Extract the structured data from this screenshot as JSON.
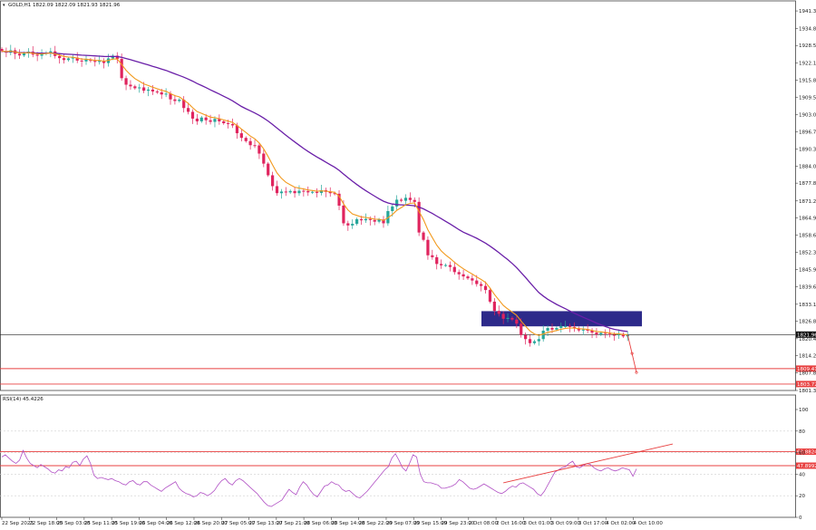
{
  "chart_data": [
    {
      "type": "candlestick",
      "symbol_header": "GOLD,H1 1822.09 1822.09 1821.93 1821.96",
      "last_price": "1821.96",
      "ylim": [
        1801.35,
        1945.0
      ],
      "y_ticks": [
        "1941.30",
        "1934.80",
        "1928.55",
        "1922.10",
        "1915.80",
        "1909.50",
        "1903.00",
        "1896.75",
        "1890.30",
        "1884.05",
        "1877.80",
        "1871.25",
        "1864.95",
        "1858.65",
        "1852.30",
        "1845.90",
        "1839.65",
        "1833.15",
        "1826.85",
        "1820.45",
        "1814.20",
        "1807.80",
        "1801.35"
      ],
      "levels": [
        {
          "price": 1809.41,
          "label": "1809.41",
          "color": "#e84040"
        },
        {
          "price": 1803.72,
          "label": "1803.72",
          "color": "#e84040"
        }
      ],
      "zone": {
        "from": 1825.0,
        "to": 1830.6,
        "color": "#2d2a8a"
      },
      "bull_color": "#26a69a",
      "bear_color": "#e0245e",
      "fast_ma_color": "#f29a1e",
      "slow_ma_color": "#6a1fa8",
      "closes": [
        1926.5,
        1925.9,
        1926.8,
        1925.5,
        1924.9,
        1925.7,
        1926.3,
        1925.2,
        1924.8,
        1925.5,
        1925.9,
        1926.4,
        1924.7,
        1923.9,
        1923.2,
        1923.8,
        1924.1,
        1923.0,
        1922.7,
        1923.4,
        1922.9,
        1922.5,
        1922.9,
        1922.1,
        1923.8,
        1924.8,
        1923.6,
        1916.5,
        1914.1,
        1913.5,
        1912.8,
        1913.1,
        1911.9,
        1912.3,
        1911.6,
        1911.3,
        1910.5,
        1910.8,
        1908.7,
        1908.1,
        1908.6,
        1905.5,
        1904.1,
        1901.6,
        1900.6,
        1902.0,
        1901.0,
        1900.4,
        1901.5,
        1900.6,
        1899.9,
        1899.6,
        1899.1,
        1896.2,
        1894.5,
        1893.3,
        1891.8,
        1891.7,
        1888.7,
        1885.0,
        1880.7,
        1876.7,
        1874.1,
        1874.7,
        1874.4,
        1874.9,
        1874.1,
        1875.0,
        1874.9,
        1874.4,
        1874.6,
        1874.2,
        1875.2,
        1874.6,
        1874.1,
        1873.9,
        1869.5,
        1863.0,
        1862.2,
        1862.8,
        1864.5,
        1864.1,
        1864.6,
        1864.2,
        1863.6,
        1864.4,
        1863.0,
        1867.5,
        1869.2,
        1871.7,
        1871.3,
        1872.4,
        1871.6,
        1870.9,
        1859.6,
        1856.9,
        1851.2,
        1850.5,
        1848.0,
        1847.5,
        1847.6,
        1846.9,
        1845.0,
        1844.2,
        1843.4,
        1842.7,
        1841.9,
        1840.6,
        1839.9,
        1838.4,
        1834.1,
        1830.7,
        1829.6,
        1827.8,
        1828.1,
        1827.5,
        1826.0,
        1821.8,
        1820.3,
        1818.8,
        1819.5,
        1820.3,
        1823.4,
        1824.4,
        1823.8,
        1824.4,
        1825.1,
        1825.1,
        1824.8,
        1824.3,
        1823.5,
        1823.8,
        1823.4,
        1822.7,
        1822.0,
        1822.6,
        1822.3,
        1821.9,
        1821.7,
        1822.2,
        1821.3,
        1821.96,
        1815.0,
        1808.0
      ],
      "x_labels": [
        "22 Sep 2023",
        "22 Sep 18:00",
        "25 Sep 03:00",
        "25 Sep 11:00",
        "25 Sep 19:00",
        "26 Sep 04:00",
        "26 Sep 12:00",
        "26 Sep 20:00",
        "27 Sep 05:00",
        "27 Sep 13:00",
        "27 Sep 21:00",
        "28 Sep 06:00",
        "28 Sep 14:00",
        "28 Sep 22:00",
        "29 Sep 07:00",
        "29 Sep 15:00",
        "29 Sep 23:00",
        "2 Oct 08:00",
        "2 Oct 16:00",
        "3 Oct 01:00",
        "3 Oct 09:00",
        "3 Oct 17:00",
        "4 Oct 02:00",
        "4 Oct 10:00"
      ]
    },
    {
      "type": "line",
      "indicator_header": "RSI(14) 45.4226",
      "ylim": [
        0,
        100
      ],
      "y_ticks": [
        "100",
        "80",
        "60",
        "40",
        "20",
        "0"
      ],
      "levels": [
        {
          "value": 60.8824,
          "label": "60.8824",
          "color": "#e84040"
        },
        {
          "value": 47.8992,
          "label": "47.8992",
          "color": "#e84040"
        }
      ],
      "line_color": "#b04fc4",
      "trendline_color": "#e84040",
      "trendline": {
        "from": [
          113,
          32
        ],
        "to": [
          164,
          68
        ]
      },
      "rsi": [
        56,
        58,
        55,
        52,
        50,
        53,
        62,
        55,
        50,
        48,
        46,
        49,
        47,
        45,
        42,
        41,
        44,
        43,
        47,
        46,
        51,
        52,
        48,
        54,
        57,
        50,
        39,
        36,
        37,
        36,
        35,
        36,
        34,
        33,
        31,
        30,
        33,
        34,
        31,
        30,
        33,
        33,
        30,
        28,
        26,
        24,
        27,
        29,
        31,
        33,
        27,
        24,
        22,
        21,
        19,
        20,
        23,
        22,
        20,
        22,
        25,
        30,
        34,
        36,
        32,
        30,
        34,
        36,
        34,
        31,
        28,
        25,
        22,
        18,
        14,
        11,
        10,
        12,
        14,
        16,
        21,
        26,
        23,
        21,
        28,
        33,
        30,
        25,
        21,
        19,
        24,
        29,
        30,
        33,
        31,
        30,
        26,
        24,
        25,
        22,
        19,
        18,
        21,
        24,
        28,
        32,
        36,
        40,
        44,
        47,
        55,
        59,
        53,
        46,
        43,
        50,
        58,
        56,
        40,
        33,
        32,
        32,
        31,
        30,
        27,
        27,
        28,
        29,
        31,
        35,
        33,
        30,
        27,
        26,
        27,
        29,
        31,
        29,
        27,
        25,
        23,
        22,
        24,
        27,
        29,
        28,
        31,
        32,
        30,
        28,
        26,
        22,
        20,
        24,
        30,
        36,
        42,
        44,
        46,
        47,
        50,
        52,
        47,
        46,
        48,
        50,
        49,
        46,
        44,
        43,
        45,
        46,
        44,
        43,
        44,
        46,
        45,
        44,
        38,
        45
      ]
    }
  ]
}
